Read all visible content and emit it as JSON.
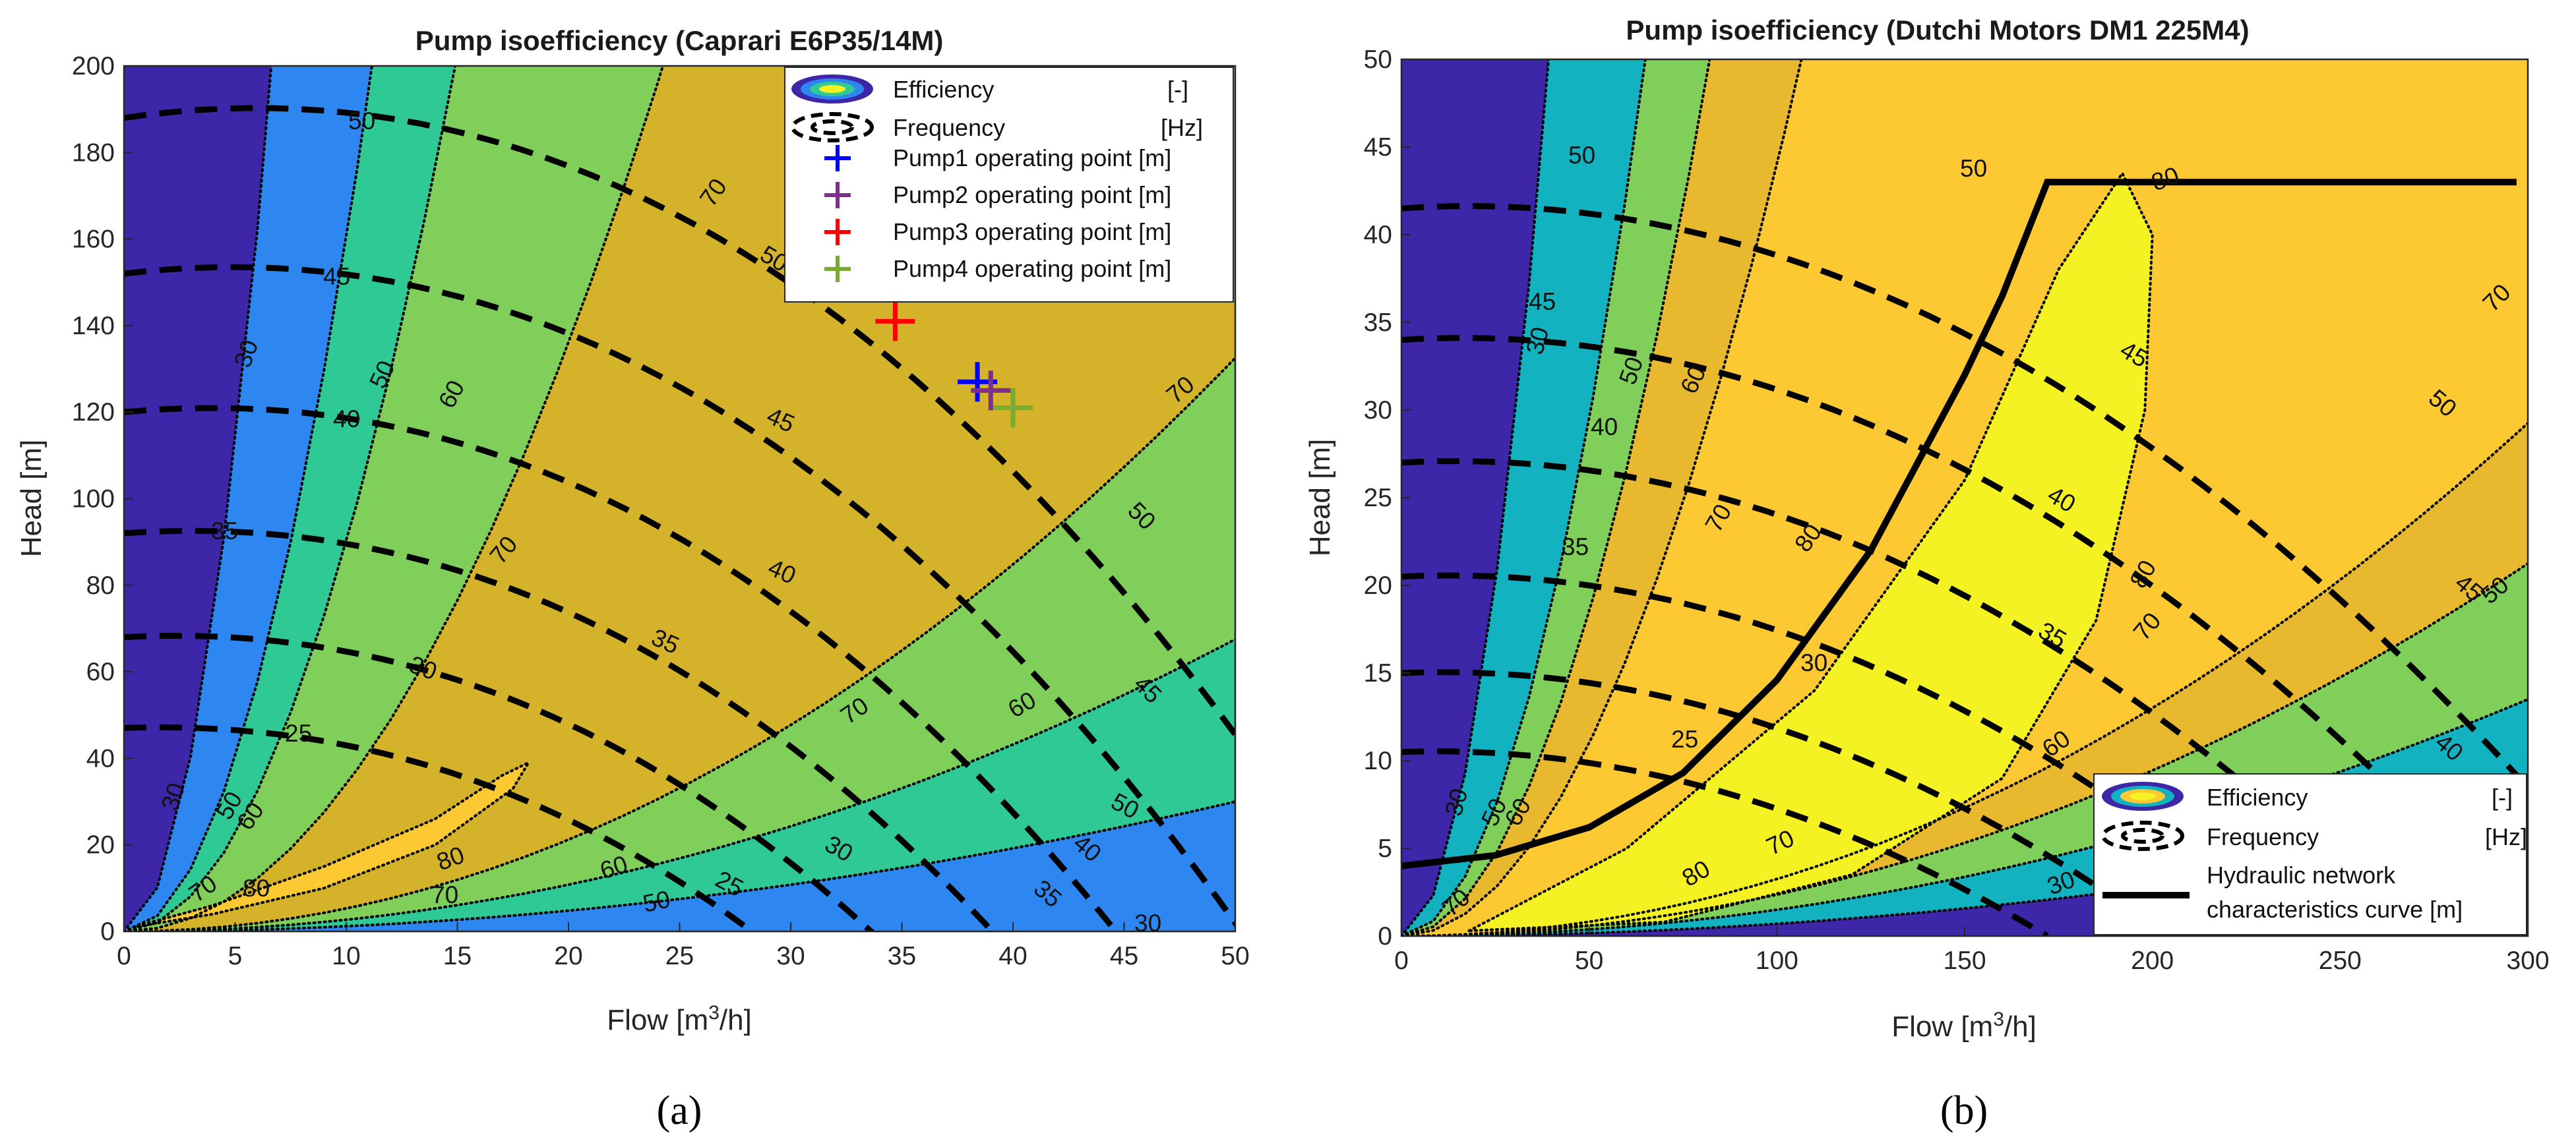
{
  "colors": {
    "eff_low": "#3e26a8",
    "eff_30": "#2e87f0",
    "eff_50": "#12b2c0",
    "eff_60": "#2ec995",
    "eff_70": "#7fcf5a",
    "eff_mid": "#d4b32a",
    "eff_high": "#fcc933",
    "eff_peak": "#f5f224",
    "pump1": "#0000ff",
    "pump2": "#7e2f8e",
    "pump3": "#ff0000",
    "pump4": "#77ac30"
  },
  "captions": {
    "a": "(a)",
    "b": "(b)"
  },
  "chart_data": [
    {
      "type": "contour",
      "title": "Pump isoefficiency  (Caprari E6P35/14M)",
      "xlabel": "Flow [m3/h]",
      "ylabel": "Head [m]",
      "xlim": [
        0,
        50
      ],
      "ylim": [
        0,
        200
      ],
      "xticks": [
        0,
        5,
        10,
        15,
        20,
        25,
        30,
        35,
        40,
        45,
        50
      ],
      "yticks": [
        0,
        20,
        40,
        60,
        80,
        100,
        120,
        140,
        160,
        180,
        200
      ],
      "efficiency_levels": [
        30,
        50,
        60,
        70,
        80
      ],
      "frequency_levels_hz": [
        25,
        30,
        35,
        40,
        45,
        50
      ],
      "frequency_shutoff_head_m": {
        "25": 47,
        "30": 68,
        "35": 92,
        "40": 120,
        "45": 152,
        "50": 188
      },
      "legend": {
        "position": "top-right",
        "entries": [
          {
            "label": "Efficiency",
            "unit": "[-]",
            "kind": "efficiency"
          },
          {
            "label": "Frequency",
            "unit": "[Hz]",
            "kind": "frequency"
          },
          {
            "label": "Pump1 operating point [m]",
            "kind": "pump1"
          },
          {
            "label": "Pump2 operating point [m]",
            "kind": "pump2"
          },
          {
            "label": "Pump3 operating point [m]",
            "kind": "pump3"
          },
          {
            "label": "Pump4 operating point [m]",
            "kind": "pump4"
          }
        ]
      },
      "operating_points": [
        {
          "name": "Pump1 operating point [m]",
          "flow": 38.4,
          "head": 127
        },
        {
          "name": "Pump2 operating point [m]",
          "flow": 39.0,
          "head": 125
        },
        {
          "name": "Pump3 operating point [m]",
          "flow": 34.7,
          "head": 141
        },
        {
          "name": "Pump4 operating point [m]",
          "flow": 40.0,
          "head": 121
        }
      ]
    },
    {
      "type": "contour",
      "title": "Pump isoefficiency (Dutchi Motors DM1 225M4)",
      "xlabel": "Flow [m3/h]",
      "ylabel": "Head [m]",
      "xlim": [
        0,
        300
      ],
      "ylim": [
        0,
        50
      ],
      "xticks": [
        0,
        50,
        100,
        150,
        200,
        250,
        300
      ],
      "yticks": [
        0,
        5,
        10,
        15,
        20,
        25,
        30,
        35,
        40,
        45,
        50
      ],
      "efficiency_levels": [
        30,
        50,
        60,
        70,
        80
      ],
      "frequency_levels_hz": [
        25,
        30,
        35,
        40,
        45,
        50
      ],
      "frequency_shutoff_head_m": {
        "25": 10.5,
        "30": 15,
        "35": 20.5,
        "40": 27,
        "45": 34,
        "50": 41.5
      },
      "legend": {
        "position": "bottom-right",
        "entries": [
          {
            "label": "Efficiency",
            "unit": "[-]",
            "kind": "efficiency"
          },
          {
            "label": "Frequency",
            "unit": "[Hz]",
            "kind": "frequency"
          },
          {
            "label": "Hydraulic network",
            "label2": "characteristics curve [m]",
            "kind": "network"
          }
        ]
      },
      "network_curve": {
        "name": "Hydraulic network characteristics curve [m]",
        "flow": [
          0,
          25,
          50,
          75,
          100,
          125,
          150,
          160,
          172,
          200,
          250,
          297
        ],
        "head": [
          4,
          4.6,
          6.2,
          9.3,
          14.6,
          22,
          32,
          36.5,
          43,
          43,
          43,
          43
        ]
      }
    }
  ]
}
